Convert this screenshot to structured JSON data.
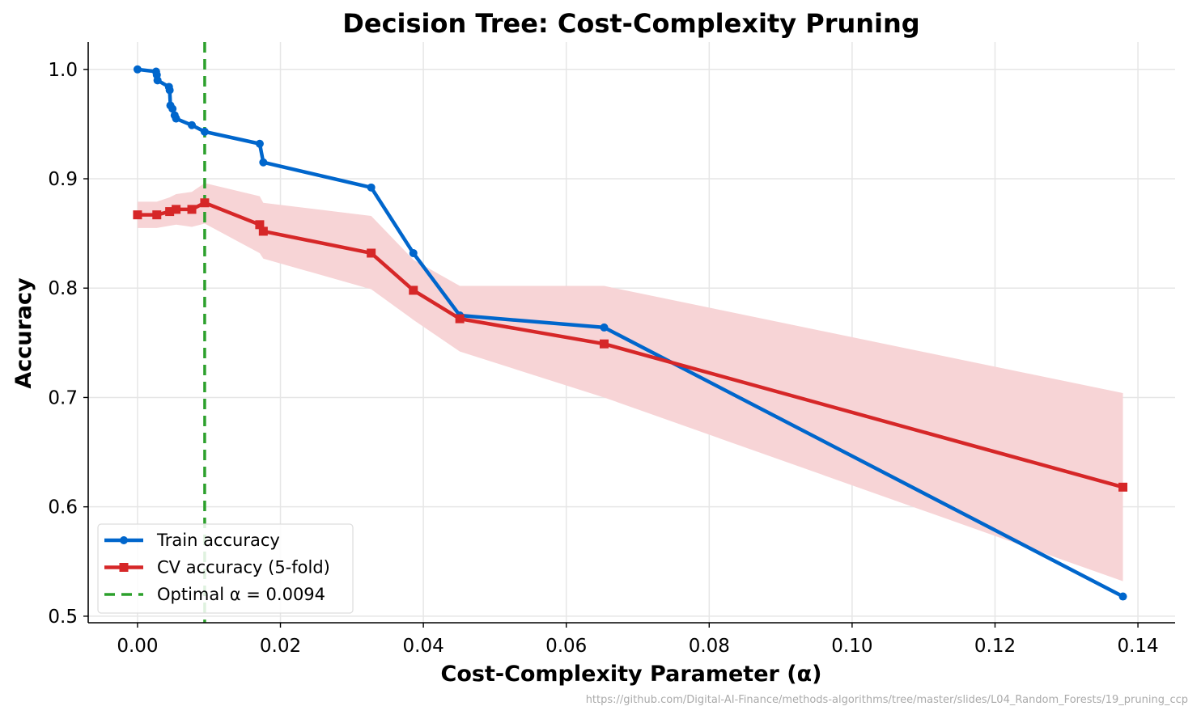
{
  "chart_data": {
    "type": "line",
    "title": "Decision Tree: Cost-Complexity Pruning",
    "xlabel": "Cost-Complexity Parameter (α)",
    "ylabel": "Accuracy",
    "xlim": [
      -0.0069,
      0.1452
    ],
    "ylim": [
      0.494,
      1.025
    ],
    "xticks": [
      0.0,
      0.02,
      0.04,
      0.06,
      0.08,
      0.1,
      0.12,
      0.14
    ],
    "xtick_labels": [
      "0.00",
      "0.02",
      "0.04",
      "0.06",
      "0.08",
      "0.10",
      "0.12",
      "0.14"
    ],
    "yticks": [
      0.5,
      0.6,
      0.7,
      0.8,
      0.9,
      1.0
    ],
    "ytick_labels": [
      "0.5",
      "0.6",
      "0.7",
      "0.8",
      "0.9",
      "1.0"
    ],
    "grid": true,
    "legend_position": "lower-left",
    "series": [
      {
        "name": "Train accuracy",
        "color": "#0066cc",
        "marker": "circle",
        "x": [
          0.0,
          0.0026,
          0.0027,
          0.0028,
          0.0044,
          0.0045,
          0.0046,
          0.0049,
          0.0052,
          0.0054,
          0.0076,
          0.0094,
          0.0171,
          0.0176,
          0.0327,
          0.0386,
          0.0451,
          0.0653,
          0.1379
        ],
        "y": [
          1.0,
          0.998,
          0.995,
          0.99,
          0.984,
          0.981,
          0.967,
          0.964,
          0.958,
          0.955,
          0.949,
          0.943,
          0.932,
          0.915,
          0.892,
          0.832,
          0.775,
          0.764,
          0.518
        ]
      },
      {
        "name": "CV accuracy (5-fold)",
        "color": "#d62728",
        "marker": "square",
        "x": [
          0.0,
          0.0027,
          0.0045,
          0.0054,
          0.0076,
          0.0094,
          0.0171,
          0.0176,
          0.0327,
          0.0386,
          0.0451,
          0.0653,
          0.1379
        ],
        "y": [
          0.867,
          0.867,
          0.87,
          0.872,
          0.872,
          0.878,
          0.858,
          0.852,
          0.832,
          0.798,
          0.772,
          0.749,
          0.618
        ],
        "band_upper": [
          0.879,
          0.879,
          0.883,
          0.886,
          0.888,
          0.896,
          0.884,
          0.878,
          0.866,
          0.826,
          0.802,
          0.802,
          0.704
        ],
        "band_lower": [
          0.855,
          0.855,
          0.857,
          0.858,
          0.856,
          0.859,
          0.832,
          0.827,
          0.799,
          0.771,
          0.742,
          0.7,
          0.532
        ],
        "band_color": "#f7d4d6"
      }
    ],
    "vlines": [
      {
        "name": "Optimal α = 0.0094",
        "x": 0.0094,
        "color": "#2ca02c",
        "style": "dashed"
      }
    ],
    "legend": [
      "Train accuracy",
      "CV accuracy (5-fold)",
      "Optimal α = 0.0094"
    ]
  },
  "footer_url": "https://github.com/Digital-AI-Finance/methods-algorithms/tree/master/slides/L04_Random_Forests/19_pruning_ccp"
}
